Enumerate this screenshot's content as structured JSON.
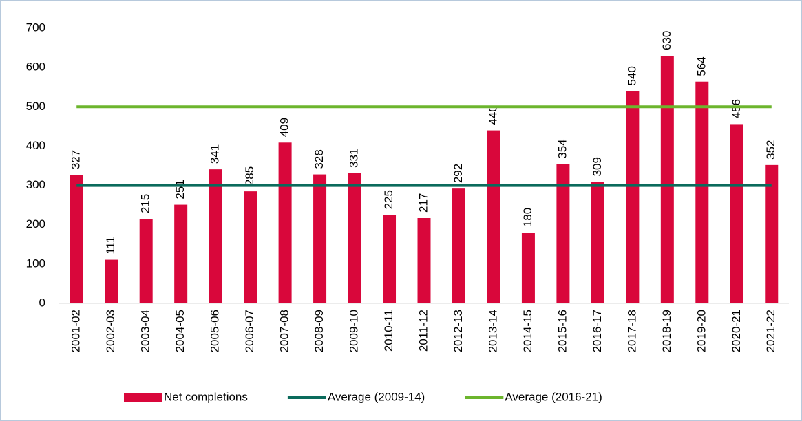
{
  "chart_data": {
    "type": "bar",
    "categories": [
      "2001-02",
      "2002-03",
      "2003-04",
      "2004-05",
      "2005-06",
      "2006-07",
      "2007-08",
      "2008-09",
      "2009-10",
      "2010-11",
      "2011-12",
      "2012-13",
      "2013-14",
      "2014-15",
      "2015-16",
      "2016-17",
      "2017-18",
      "2018-19",
      "2019-20",
      "2020-21",
      "2021-22"
    ],
    "series": [
      {
        "name": "Net completions",
        "type": "bar",
        "color": "#d9073b",
        "values": [
          327,
          111,
          215,
          251,
          341,
          285,
          409,
          328,
          331,
          225,
          217,
          292,
          440,
          180,
          354,
          309,
          540,
          630,
          564,
          456,
          352
        ]
      },
      {
        "name": "Average (2009-14)",
        "type": "line",
        "color": "#0b6b5c",
        "values": [
          300,
          300,
          300,
          300,
          300,
          300,
          300,
          300,
          300,
          300,
          300,
          300,
          300,
          300,
          300,
          300,
          300,
          300,
          300,
          300,
          300
        ]
      },
      {
        "name": "Average (2016-21)",
        "type": "line",
        "color": "#6cb52d",
        "values": [
          500,
          500,
          500,
          500,
          500,
          500,
          500,
          500,
          500,
          500,
          500,
          500,
          500,
          500,
          500,
          500,
          500,
          500,
          500,
          500,
          500
        ]
      }
    ],
    "ylim": [
      0,
      700
    ],
    "yticks": [
      0,
      100,
      200,
      300,
      400,
      500,
      600,
      700
    ],
    "grid": false,
    "legend": "bottom",
    "data_labels": true
  }
}
